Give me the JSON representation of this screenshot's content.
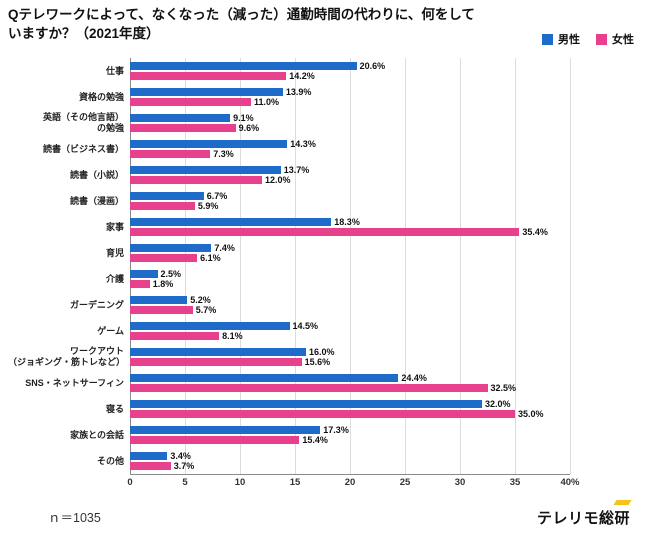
{
  "title": {
    "text": "Qテレワークによって、なくなった（減った）通勤時間の代わりに、何をして\nいますか？（2021年度）"
  },
  "legend": [
    {
      "label": "男性",
      "color": "#1f6bc9"
    },
    {
      "label": "女性",
      "color": "#e7418d"
    }
  ],
  "chart_data": {
    "type": "bar",
    "orientation": "horizontal",
    "title": "Qテレワークによって、なくなった（減った）通勤時間の代わりに、何をしていますか？（2021年度）",
    "categories": [
      "仕事",
      "資格の勉強",
      "英語（その他言語）\nの勉強",
      "読書（ビジネス書）",
      "読書（小説）",
      "読書（漫画）",
      "家事",
      "育児",
      "介護",
      "ガーデニング",
      "ゲーム",
      "ワークアウト\n（ジョギング・筋トレなど）",
      "SNS・ネットサーフィン",
      "寝る",
      "家族との会話",
      "その他"
    ],
    "series": [
      {
        "name": "男性",
        "color": "#1f6bc9",
        "values": [
          20.6,
          13.9,
          9.1,
          14.3,
          13.7,
          6.7,
          18.3,
          7.4,
          2.5,
          5.2,
          14.5,
          16.0,
          24.4,
          32.0,
          17.3,
          3.4
        ]
      },
      {
        "name": "女性",
        "color": "#e7418d",
        "values": [
          14.2,
          11.0,
          9.6,
          7.3,
          12.0,
          5.9,
          35.4,
          6.1,
          1.8,
          5.7,
          8.1,
          15.6,
          32.5,
          35.0,
          15.4,
          3.7
        ]
      }
    ],
    "xlim": [
      0,
      40
    ],
    "ticks": [
      0,
      5,
      10,
      15,
      20,
      25,
      30,
      35,
      40
    ],
    "tick_labels": [
      "0",
      "5",
      "10",
      "15",
      "20",
      "25",
      "30",
      "35",
      "40%"
    ],
    "value_suffix": "%",
    "grid": true,
    "legend_position": "top-right"
  },
  "footer": {
    "sample_size": "ｎ＝1035",
    "logo": "テレリモ総研",
    "logo_accent_color": "#f6c31c"
  }
}
